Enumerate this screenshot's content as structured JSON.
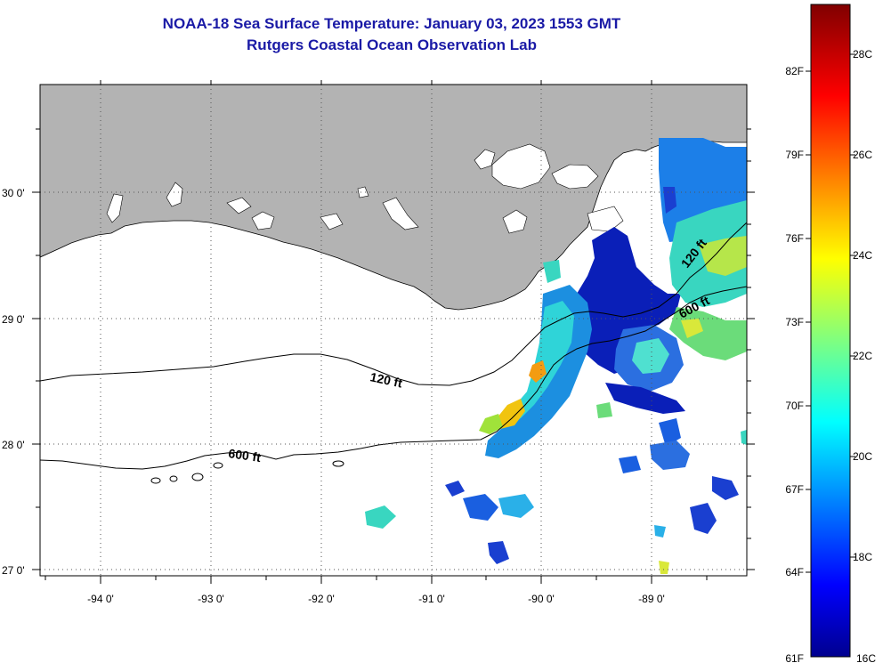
{
  "title": {
    "line1": "NOAA-18 Sea Surface Temperature:  January 03, 2023 1553 GMT",
    "line2": "Rutgers Coastal Ocean Observation Lab"
  },
  "axes": {
    "lat_labels": [
      "30 0'",
      "29 0'",
      "28 0'",
      "27 0'"
    ],
    "lon_labels": [
      "-94 0'",
      "-93 0'",
      "-92 0'",
      "-91 0'",
      "-90 0'",
      "-89 0'"
    ]
  },
  "contours": {
    "depth_120": "120 ft",
    "depth_600": "600 ft"
  },
  "colorbar": {
    "fahrenheit": [
      "82F",
      "79F",
      "76F",
      "73F",
      "70F",
      "67F",
      "64F",
      "61F"
    ],
    "celsius": [
      "28C",
      "26C",
      "24C",
      "22C",
      "20C",
      "18C",
      "16C"
    ]
  },
  "colors": {
    "title": "#1a1aa6",
    "land": "#b3b3b3",
    "ocean": "#ffffff"
  }
}
